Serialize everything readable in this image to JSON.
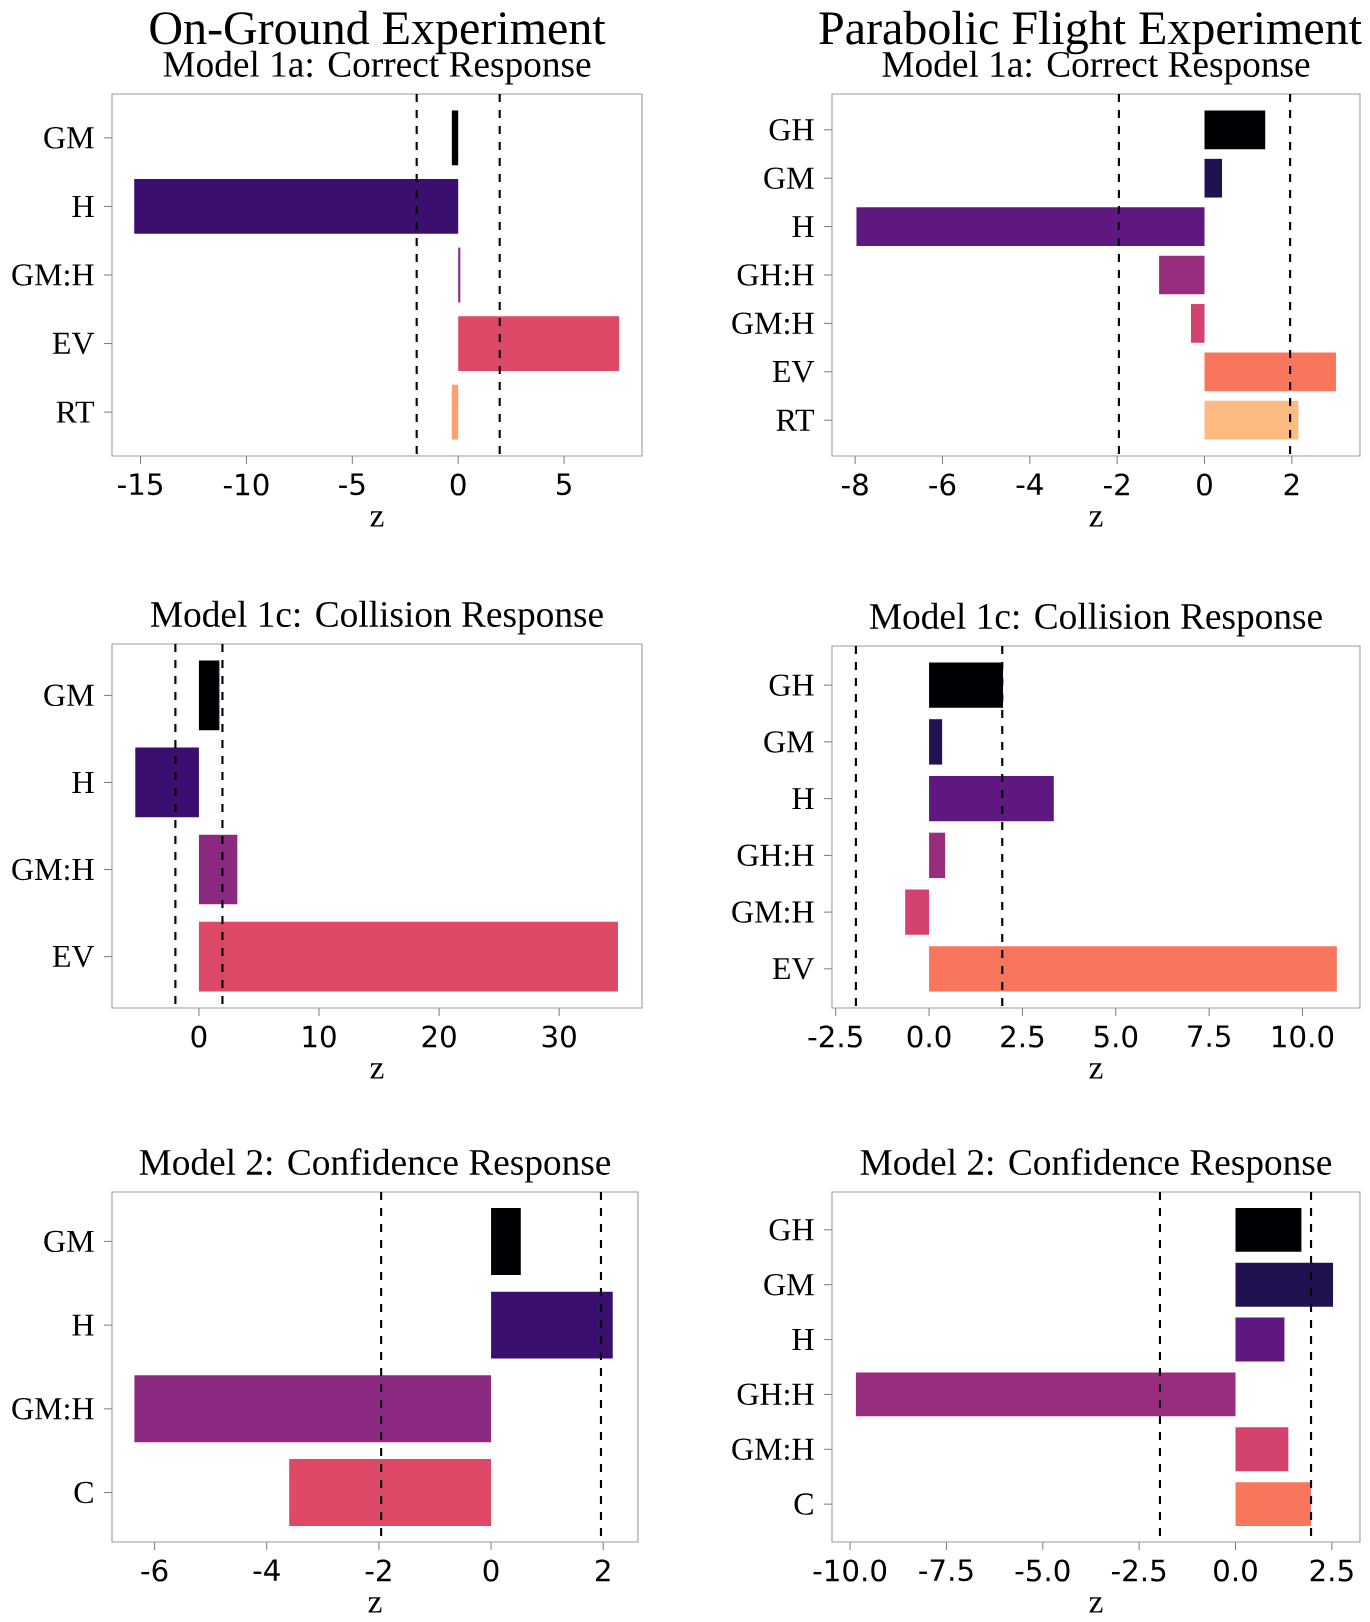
{
  "chart_data": [
    {
      "type": "bar",
      "orientation": "horizontal",
      "title": "On-Ground Experiment",
      "subtitle": "Model 1a: Correct Response",
      "xlabel": "z",
      "categories": [
        "GM",
        "H",
        "GM:H",
        "EV",
        "RT"
      ],
      "values": [
        -0.3,
        -15.3,
        0.1,
        7.6,
        -0.3
      ],
      "colors": [
        "#000004",
        "#3b0f70",
        "#8c2981",
        "#de4968",
        "#fe9f6d"
      ],
      "xlim": [
        -16.35,
        8.68
      ],
      "xticks": [
        -15,
        -10,
        -5,
        0,
        5
      ],
      "ref_lines": [
        {
          "axis": "x",
          "value": -1.96,
          "color": "#000000",
          "line_style": "dashed"
        },
        {
          "axis": "x",
          "value": 1.96,
          "color": "#000000",
          "line_style": "dashed"
        }
      ]
    },
    {
      "type": "bar",
      "orientation": "horizontal",
      "title": "Parabolic Flight Experiment",
      "subtitle": "Model 1a: Correct Response",
      "xlabel": "z",
      "categories": [
        "GH",
        "GM",
        "H",
        "GH:H",
        "GM:H",
        "EV",
        "RT"
      ],
      "values": [
        1.39,
        0.4,
        -7.97,
        -1.04,
        -0.31,
        3.01,
        2.15
      ],
      "colors": [
        "#000004",
        "#221150",
        "#5f187f",
        "#982d80",
        "#d3436e",
        "#f8765c",
        "#febb81"
      ],
      "xlim": [
        -8.53,
        3.56
      ],
      "xticks": [
        -8,
        -6,
        -4,
        -2,
        0,
        2
      ],
      "ref_lines": [
        {
          "axis": "x",
          "value": -1.96,
          "color": "#000000",
          "line_style": "dashed"
        },
        {
          "axis": "x",
          "value": 1.96,
          "color": "#000000",
          "line_style": "dashed"
        }
      ]
    },
    {
      "type": "bar",
      "orientation": "horizontal",
      "title": "Model 1c: Collision Response",
      "xlabel": "z",
      "categories": [
        "GM",
        "H",
        "GM:H",
        "EV"
      ],
      "values": [
        1.7,
        -5.3,
        3.2,
        34.9
      ],
      "colors": [
        "#000004",
        "#3b0f70",
        "#8c2981",
        "#de4968"
      ],
      "xlim": [
        -7.24,
        36.9
      ],
      "xticks": [
        0,
        10,
        20,
        30
      ],
      "ref_lines": [
        {
          "axis": "x",
          "value": -1.96,
          "color": "#000000",
          "line_style": "dashed"
        },
        {
          "axis": "x",
          "value": 1.96,
          "color": "#000000",
          "line_style": "dashed"
        }
      ]
    },
    {
      "type": "bar",
      "orientation": "horizontal",
      "title": "Model 1c: Collision Response",
      "xlabel": "z",
      "categories": [
        "GH",
        "GM",
        "H",
        "GH:H",
        "GM:H",
        "EV"
      ],
      "values": [
        1.98,
        0.35,
        3.34,
        0.43,
        -0.64,
        10.92
      ],
      "colors": [
        "#000004",
        "#221150",
        "#5f187f",
        "#982d80",
        "#d3436e",
        "#f8765c"
      ],
      "xlim": [
        -2.6,
        11.54
      ],
      "xticks": [
        -2.5,
        {
          "value": 0,
          "label": "0.0"
        },
        2.5,
        {
          "value": 5,
          "label": "5.0"
        },
        7.5,
        {
          "value": 10,
          "label": "10.0"
        }
      ],
      "ref_lines": [
        {
          "axis": "x",
          "value": -1.96,
          "color": "#000000",
          "line_style": "dashed"
        },
        {
          "axis": "x",
          "value": 1.96,
          "color": "#000000",
          "line_style": "dashed"
        }
      ]
    },
    {
      "type": "bar",
      "orientation": "horizontal",
      "title": "Model 2: Confidence Response",
      "xlabel": "z",
      "categories": [
        "GM",
        "H",
        "GM:H",
        "C"
      ],
      "values": [
        0.53,
        2.17,
        -6.36,
        -3.6
      ],
      "colors": [
        "#000004",
        "#3b0f70",
        "#8c2981",
        "#de4968"
      ],
      "xlim": [
        -6.76,
        2.62
      ],
      "xticks": [
        -6,
        -4,
        -2,
        0,
        2
      ],
      "ref_lines": [
        {
          "axis": "x",
          "value": -1.96,
          "color": "#000000",
          "line_style": "dashed"
        },
        {
          "axis": "x",
          "value": 1.96,
          "color": "#000000",
          "line_style": "dashed"
        }
      ]
    },
    {
      "type": "bar",
      "orientation": "horizontal",
      "title": "Model 2: Confidence Response",
      "xlabel": "z",
      "categories": [
        "GH",
        "GM",
        "H",
        "GH:H",
        "GM:H",
        "C"
      ],
      "values": [
        1.71,
        2.53,
        1.27,
        -9.85,
        1.37,
        1.96
      ],
      "colors": [
        "#000004",
        "#221150",
        "#5f187f",
        "#982d80",
        "#d3436e",
        "#f8765c"
      ],
      "xlim": [
        -10.47,
        3.23
      ],
      "xticks": [
        {
          "value": -10,
          "label": "-10.0"
        },
        -7.5,
        {
          "value": -5,
          "label": "-5.0"
        },
        -2.5,
        {
          "value": 0,
          "label": "0.0"
        },
        2.5
      ],
      "ref_lines": [
        {
          "axis": "x",
          "value": -1.96,
          "color": "#000000",
          "line_style": "dashed"
        },
        {
          "axis": "x",
          "value": 1.96,
          "color": "#000000",
          "line_style": "dashed"
        }
      ]
    }
  ]
}
